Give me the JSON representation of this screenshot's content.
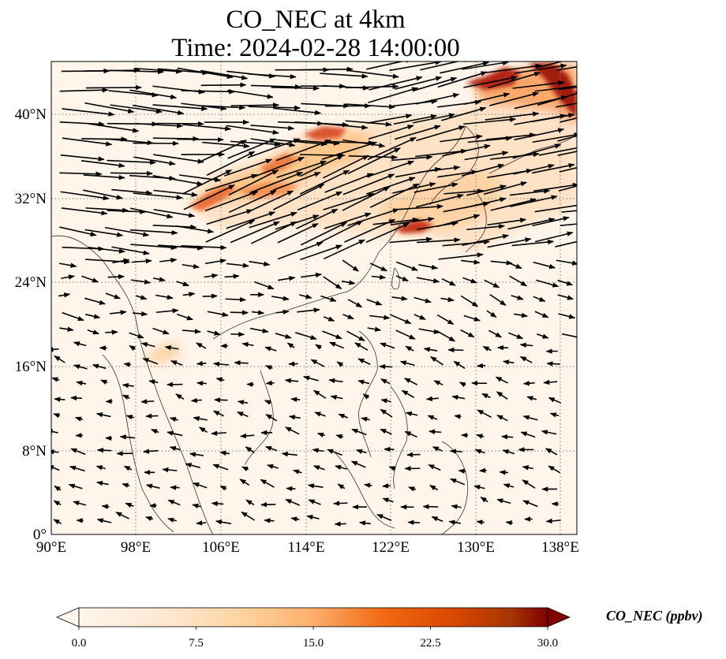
{
  "title": {
    "line1": "CO_NEC at 4km",
    "line2": "Time: 2024-02-28 14:00:00"
  },
  "map": {
    "lon_range": [
      90,
      139.5
    ],
    "lat_range": [
      0,
      45
    ],
    "lon_ticks": [
      "90°E",
      "98°E",
      "106°E",
      "114°E",
      "122°E",
      "130°E",
      "138°E"
    ],
    "lat_ticks": [
      "0°",
      "8°N",
      "16°N",
      "24°N",
      "32°N",
      "40°N"
    ],
    "gridlines": "dotted",
    "field": "CO_NEC",
    "units": "ppbv",
    "wind_vectors": true
  },
  "colorbar": {
    "label": "CO_NEC (ppbv)",
    "range": [
      0,
      30
    ],
    "ticks": [
      "0.0",
      "7.5",
      "15.0",
      "22.5",
      "30.0"
    ],
    "extend": "both",
    "colors": [
      "#fff5eb",
      "#fdd49e",
      "#fdae6b",
      "#f16913",
      "#d94801",
      "#a63603",
      "#7f0000"
    ]
  }
}
